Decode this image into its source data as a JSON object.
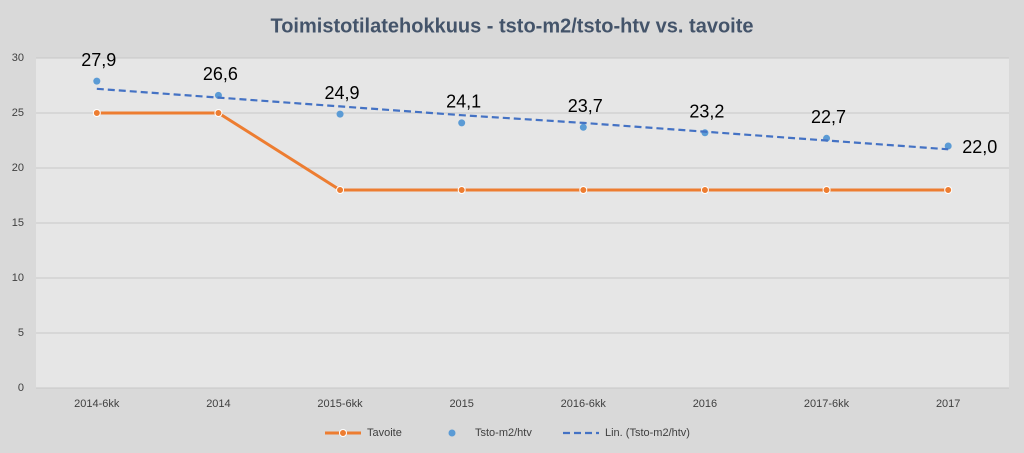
{
  "chart_data": {
    "type": "line",
    "title": "Toimistotilatehokkuus - tsto-m2/tsto-htv vs. tavoite",
    "categories": [
      "2014-6kk",
      "2014",
      "2015-6kk",
      "2015",
      "2016-6kk",
      "2016",
      "2017-6kk",
      "2017"
    ],
    "series": [
      {
        "name": "Tavoite",
        "color": "#ed7d31",
        "style": "line-marker",
        "values": [
          25,
          25,
          18,
          18,
          18,
          18,
          18,
          18
        ]
      },
      {
        "name": "Tsto-m2/htv",
        "color": "#5b9bd5",
        "style": "marker",
        "values": [
          27.9,
          26.6,
          24.9,
          24.1,
          23.7,
          23.2,
          22.7,
          22.0
        ],
        "value_labels": [
          "27,9",
          "26,6",
          "24,9",
          "24,1",
          "23,7",
          "23,2",
          "22,7",
          "22,0"
        ]
      },
      {
        "name": "Lin. (Tsto-m2/htv)",
        "color": "#4472c4",
        "style": "dashed",
        "values": [
          27.2,
          26.4,
          25.6,
          24.8,
          24.1,
          23.3,
          22.5,
          21.7
        ]
      }
    ],
    "ylim": [
      0,
      30
    ],
    "yticks": [
      0,
      5,
      10,
      15,
      20,
      25,
      30
    ],
    "grid": true,
    "legend": "bottom"
  }
}
